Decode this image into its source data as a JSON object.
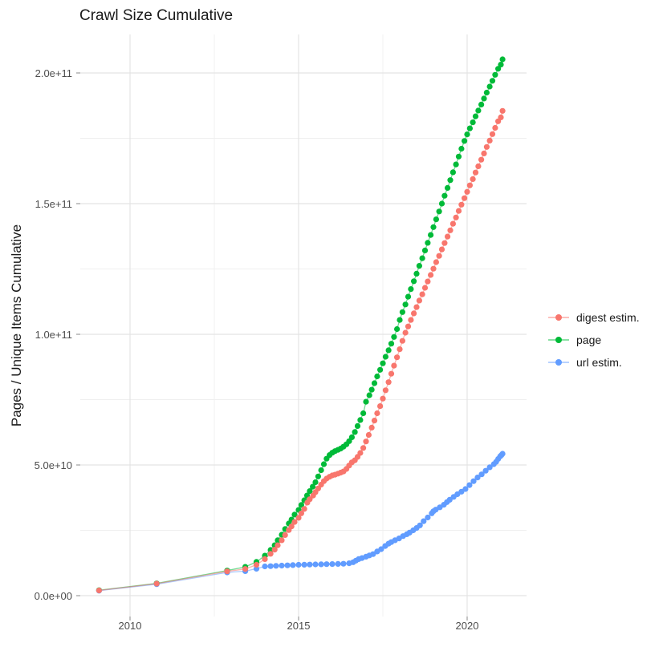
{
  "title": "Crawl Size Cumulative",
  "y_axis": {
    "label": "Pages / Unique Items Cumulative",
    "ticks": [
      {
        "label": "0.0e+00",
        "value": 0
      },
      {
        "label": "5.0e+10",
        "value": 50
      },
      {
        "label": "1.0e+11",
        "value": 100
      },
      {
        "label": "1.5e+11",
        "value": 150
      },
      {
        "label": "2.0e+11",
        "value": 200
      }
    ],
    "minor_values": [
      25,
      75,
      125,
      175
    ]
  },
  "x_axis": {
    "ticks": [
      {
        "label": "2010",
        "value": 2010
      },
      {
        "label": "2015",
        "value": 2015
      },
      {
        "label": "2020",
        "value": 2020
      }
    ],
    "minor_values": [
      2012.5,
      2017.5
    ]
  },
  "legend": {
    "items": [
      {
        "label": "digest estim.",
        "color": "#F8766D"
      },
      {
        "label": "page",
        "color": "#00BA38"
      },
      {
        "label": "url estim.",
        "color": "#619CFF"
      }
    ]
  },
  "chart_data": {
    "type": "scatter",
    "title": "Crawl Size Cumulative",
    "xlabel": "",
    "ylabel": "Pages / Unique Items Cumulative",
    "values_unit": "1e9 (billions), cumulative",
    "xlim": [
      2008.5,
      2021.6
    ],
    "ylim_e9": [
      0,
      212
    ],
    "grid": true,
    "legend_position": "right",
    "series": [
      {
        "name": "page",
        "color": "#00BA38",
        "points": [
          [
            2009.08,
            2.1
          ],
          [
            2010.79,
            4.7
          ],
          [
            2012.88,
            9.6
          ],
          [
            2013.42,
            11.0
          ],
          [
            2013.75,
            12.9
          ],
          [
            2014.0,
            15.3
          ],
          [
            2014.17,
            17.5
          ],
          [
            2014.29,
            19.3
          ],
          [
            2014.38,
            21.2
          ],
          [
            2014.5,
            23.3
          ],
          [
            2014.6,
            25.5
          ],
          [
            2014.71,
            27.6
          ],
          [
            2014.79,
            29.1
          ],
          [
            2014.88,
            31.0
          ],
          [
            2015.0,
            32.8
          ],
          [
            2015.08,
            34.7
          ],
          [
            2015.17,
            36.5
          ],
          [
            2015.25,
            38.3
          ],
          [
            2015.33,
            40.0
          ],
          [
            2015.42,
            41.7
          ],
          [
            2015.5,
            43.4
          ],
          [
            2015.58,
            45.6
          ],
          [
            2015.67,
            48.0
          ],
          [
            2015.75,
            50.3
          ],
          [
            2015.83,
            52.4
          ],
          [
            2015.92,
            53.8
          ],
          [
            2016.0,
            54.7
          ],
          [
            2016.08,
            55.3
          ],
          [
            2016.17,
            55.8
          ],
          [
            2016.25,
            56.3
          ],
          [
            2016.33,
            57.0
          ],
          [
            2016.42,
            57.9
          ],
          [
            2016.5,
            59.1
          ],
          [
            2016.58,
            60.6
          ],
          [
            2016.67,
            62.6
          ],
          [
            2016.75,
            64.9
          ],
          [
            2016.83,
            67.2
          ],
          [
            2016.92,
            69.8
          ],
          [
            2017.0,
            74.2
          ],
          [
            2017.1,
            76.7
          ],
          [
            2017.17,
            78.8
          ],
          [
            2017.25,
            81.3
          ],
          [
            2017.33,
            83.9
          ],
          [
            2017.42,
            86.4
          ],
          [
            2017.5,
            88.9
          ],
          [
            2017.58,
            91.4
          ],
          [
            2017.67,
            93.9
          ],
          [
            2017.75,
            96.4
          ],
          [
            2017.83,
            99.0
          ],
          [
            2017.92,
            102.0
          ],
          [
            2018.0,
            105.5
          ],
          [
            2018.08,
            108.5
          ],
          [
            2018.17,
            111.4
          ],
          [
            2018.25,
            114.4
          ],
          [
            2018.33,
            117.3
          ],
          [
            2018.42,
            120.3
          ],
          [
            2018.5,
            123.2
          ],
          [
            2018.58,
            126.2
          ],
          [
            2018.67,
            129.1
          ],
          [
            2018.75,
            132.1
          ],
          [
            2018.83,
            135.0
          ],
          [
            2018.92,
            138.0
          ],
          [
            2019.0,
            141.0
          ],
          [
            2019.08,
            144.0
          ],
          [
            2019.17,
            147.0
          ],
          [
            2019.25,
            150.0
          ],
          [
            2019.33,
            153.0
          ],
          [
            2019.42,
            156.0
          ],
          [
            2019.5,
            159.0
          ],
          [
            2019.58,
            162.0
          ],
          [
            2019.67,
            165.0
          ],
          [
            2019.75,
            168.0
          ],
          [
            2019.83,
            171.0
          ],
          [
            2019.92,
            174.0
          ],
          [
            2020.0,
            176.5
          ],
          [
            2020.08,
            178.8
          ],
          [
            2020.17,
            181.1
          ],
          [
            2020.25,
            183.4
          ],
          [
            2020.33,
            185.6
          ],
          [
            2020.42,
            187.9
          ],
          [
            2020.5,
            190.2
          ],
          [
            2020.58,
            192.5
          ],
          [
            2020.67,
            194.8
          ],
          [
            2020.75,
            197.0
          ],
          [
            2020.83,
            199.3
          ],
          [
            2020.92,
            201.6
          ],
          [
            2021.0,
            203.2
          ],
          [
            2021.05,
            205.2
          ]
        ]
      },
      {
        "name": "url estim.",
        "color": "#619CFF",
        "points": [
          [
            2009.08,
            1.9
          ],
          [
            2010.79,
            4.4
          ],
          [
            2012.88,
            8.9
          ],
          [
            2013.42,
            9.4
          ],
          [
            2013.75,
            10.3
          ],
          [
            2014.0,
            11.2
          ],
          [
            2014.17,
            11.3
          ],
          [
            2014.33,
            11.4
          ],
          [
            2014.5,
            11.5
          ],
          [
            2014.67,
            11.6
          ],
          [
            2014.83,
            11.7
          ],
          [
            2015.0,
            11.8
          ],
          [
            2015.17,
            11.85
          ],
          [
            2015.33,
            11.9
          ],
          [
            2015.5,
            11.95
          ],
          [
            2015.67,
            12.0
          ],
          [
            2015.83,
            12.05
          ],
          [
            2016.0,
            12.1
          ],
          [
            2016.17,
            12.15
          ],
          [
            2016.33,
            12.2
          ],
          [
            2016.5,
            12.4
          ],
          [
            2016.62,
            12.8
          ],
          [
            2016.7,
            13.4
          ],
          [
            2016.78,
            14.0
          ],
          [
            2016.88,
            14.4
          ],
          [
            2017.0,
            14.9
          ],
          [
            2017.1,
            15.4
          ],
          [
            2017.21,
            15.9
          ],
          [
            2017.33,
            16.9
          ],
          [
            2017.45,
            17.8
          ],
          [
            2017.57,
            19.0
          ],
          [
            2017.67,
            19.9
          ],
          [
            2017.75,
            20.5
          ],
          [
            2017.86,
            21.2
          ],
          [
            2017.98,
            21.9
          ],
          [
            2018.1,
            22.8
          ],
          [
            2018.21,
            23.5
          ],
          [
            2018.29,
            24.1
          ],
          [
            2018.4,
            25.0
          ],
          [
            2018.5,
            25.9
          ],
          [
            2018.6,
            26.9
          ],
          [
            2018.71,
            28.5
          ],
          [
            2018.83,
            29.9
          ],
          [
            2018.95,
            31.5
          ],
          [
            2019.0,
            32.3
          ],
          [
            2019.07,
            32.9
          ],
          [
            2019.19,
            33.8
          ],
          [
            2019.31,
            34.8
          ],
          [
            2019.4,
            35.8
          ],
          [
            2019.48,
            36.7
          ],
          [
            2019.6,
            37.8
          ],
          [
            2019.71,
            38.8
          ],
          [
            2019.83,
            39.8
          ],
          [
            2019.95,
            40.8
          ],
          [
            2020.07,
            42.3
          ],
          [
            2020.19,
            43.8
          ],
          [
            2020.31,
            45.2
          ],
          [
            2020.43,
            46.4
          ],
          [
            2020.55,
            47.8
          ],
          [
            2020.67,
            49.1
          ],
          [
            2020.79,
            50.3
          ],
          [
            2020.86,
            51.2
          ],
          [
            2020.92,
            52.3
          ],
          [
            2020.98,
            53.3
          ],
          [
            2021.02,
            53.8
          ],
          [
            2021.05,
            54.3
          ]
        ]
      },
      {
        "name": "digest estim.",
        "color": "#F8766D",
        "points": [
          [
            2009.08,
            2.0
          ],
          [
            2010.79,
            4.6
          ],
          [
            2012.88,
            9.3
          ],
          [
            2013.42,
            10.2
          ],
          [
            2013.75,
            11.8
          ],
          [
            2014.0,
            14.0
          ],
          [
            2014.17,
            16.0
          ],
          [
            2014.29,
            17.6
          ],
          [
            2014.38,
            19.3
          ],
          [
            2014.5,
            21.2
          ],
          [
            2014.6,
            23.2
          ],
          [
            2014.71,
            25.1
          ],
          [
            2014.79,
            26.5
          ],
          [
            2014.88,
            28.2
          ],
          [
            2015.0,
            29.8
          ],
          [
            2015.08,
            31.5
          ],
          [
            2015.17,
            33.2
          ],
          [
            2015.26,
            35.6
          ],
          [
            2015.33,
            36.9
          ],
          [
            2015.43,
            38.3
          ],
          [
            2015.5,
            39.6
          ],
          [
            2015.58,
            41.0
          ],
          [
            2015.67,
            42.5
          ],
          [
            2015.75,
            43.8
          ],
          [
            2015.83,
            44.8
          ],
          [
            2015.92,
            45.5
          ],
          [
            2016.0,
            46.0
          ],
          [
            2016.08,
            46.3
          ],
          [
            2016.17,
            46.7
          ],
          [
            2016.25,
            47.1
          ],
          [
            2016.33,
            47.5
          ],
          [
            2016.42,
            48.5
          ],
          [
            2016.5,
            49.8
          ],
          [
            2016.58,
            51.0
          ],
          [
            2016.67,
            51.8
          ],
          [
            2016.75,
            53.1
          ],
          [
            2016.83,
            54.6
          ],
          [
            2016.92,
            56.5
          ],
          [
            2017.0,
            59.0
          ],
          [
            2017.08,
            61.5
          ],
          [
            2017.17,
            64.3
          ],
          [
            2017.25,
            67.0
          ],
          [
            2017.33,
            69.8
          ],
          [
            2017.42,
            72.5
          ],
          [
            2017.5,
            75.4
          ],
          [
            2017.58,
            78.6
          ],
          [
            2017.67,
            81.7
          ],
          [
            2017.75,
            84.9
          ],
          [
            2017.83,
            88.0
          ],
          [
            2017.92,
            91.2
          ],
          [
            2018.0,
            94.3
          ],
          [
            2018.08,
            97.5
          ],
          [
            2018.17,
            100.6
          ],
          [
            2018.25,
            103.0
          ],
          [
            2018.33,
            105.5
          ],
          [
            2018.42,
            108.0
          ],
          [
            2018.5,
            110.4
          ],
          [
            2018.58,
            112.9
          ],
          [
            2018.67,
            115.3
          ],
          [
            2018.75,
            117.8
          ],
          [
            2018.83,
            120.2
          ],
          [
            2018.92,
            122.7
          ],
          [
            2019.0,
            125.1
          ],
          [
            2019.08,
            127.6
          ],
          [
            2019.17,
            130.0
          ],
          [
            2019.25,
            132.5
          ],
          [
            2019.33,
            134.9
          ],
          [
            2019.42,
            137.4
          ],
          [
            2019.5,
            139.8
          ],
          [
            2019.58,
            142.3
          ],
          [
            2019.67,
            144.7
          ],
          [
            2019.75,
            147.2
          ],
          [
            2019.83,
            149.6
          ],
          [
            2019.92,
            152.1
          ],
          [
            2020.0,
            154.5
          ],
          [
            2020.08,
            157.0
          ],
          [
            2020.17,
            159.4
          ],
          [
            2020.25,
            161.9
          ],
          [
            2020.33,
            164.3
          ],
          [
            2020.42,
            166.8
          ],
          [
            2020.5,
            169.2
          ],
          [
            2020.58,
            171.7
          ],
          [
            2020.67,
            174.1
          ],
          [
            2020.75,
            176.6
          ],
          [
            2020.83,
            179.0
          ],
          [
            2020.92,
            181.5
          ],
          [
            2021.0,
            183.0
          ],
          [
            2021.05,
            185.5
          ]
        ]
      }
    ]
  }
}
